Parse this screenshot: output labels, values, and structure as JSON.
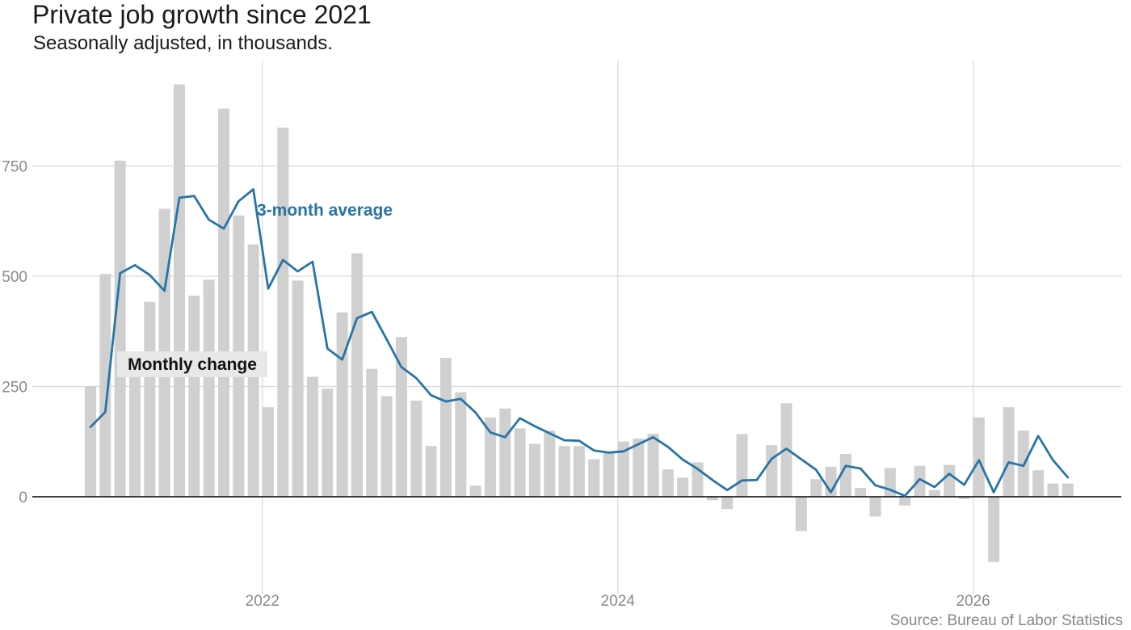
{
  "header": {
    "title": "Private job growth since 2021",
    "subtitle": "Seasonally adjusted, in thousands."
  },
  "footer": {
    "source": "Source: Bureau of Labor Statistics"
  },
  "colors": {
    "bars": "#d0d0d0",
    "line": "#2874a6",
    "gridline": "#d9d9d9",
    "zero_line": "#000000",
    "label_box": "#e8e8e8"
  },
  "chart_data": {
    "type": "bar",
    "title": "Private job growth since 2021",
    "subtitle": "Seasonally adjusted, in thousands.",
    "xlabel": "",
    "ylabel": "",
    "ylim": [
      -170,
      960
    ],
    "yticks": [
      0,
      250,
      500,
      750
    ],
    "ytick_labels": [
      "0",
      "250",
      "500",
      "750"
    ],
    "xticks": [
      "2022",
      "2024",
      "2026"
    ],
    "grid": true,
    "start_month": "2021-01",
    "months": [
      "2021-01",
      "2021-02",
      "2021-03",
      "2021-04",
      "2021-05",
      "2021-06",
      "2021-07",
      "2021-08",
      "2021-09",
      "2021-10",
      "2021-11",
      "2021-12",
      "2022-01",
      "2022-02",
      "2022-03",
      "2022-04",
      "2022-05",
      "2022-06",
      "2022-07",
      "2022-08",
      "2022-09",
      "2022-10",
      "2022-11",
      "2022-12",
      "2023-01",
      "2023-02",
      "2023-03",
      "2023-04",
      "2023-05",
      "2023-06",
      "2023-07",
      "2023-08",
      "2023-09",
      "2023-10",
      "2023-11",
      "2023-12",
      "2024-01",
      "2024-02",
      "2024-03",
      "2024-04",
      "2024-05",
      "2024-06",
      "2024-07",
      "2024-08",
      "2024-09",
      "2024-10",
      "2024-11",
      "2024-12",
      "2025-01",
      "2025-02",
      "2025-03",
      "2025-04",
      "2025-05",
      "2025-06",
      "2025-07",
      "2025-08",
      "2025-09",
      "2025-10",
      "2025-11",
      "2025-12",
      "2026-01",
      "2026-02",
      "2026-03",
      "2026-04",
      "2026-05",
      "2026-06",
      "2026-07"
    ],
    "series": [
      {
        "name": "Monthly change",
        "type": "bar",
        "values": [
          250,
          505,
          762,
          295,
          442,
          653,
          935,
          456,
          492,
          880,
          638,
          572,
          203,
          837,
          490,
          272,
          245,
          418,
          552,
          290,
          228,
          362,
          218,
          115,
          315,
          237,
          25,
          180,
          200,
          155,
          120,
          150,
          115,
          115,
          85,
          100,
          125,
          132,
          143,
          62,
          43,
          78,
          -8,
          -28,
          142,
          0,
          117,
          212,
          -78,
          40,
          68,
          97,
          20,
          -45,
          65,
          -20,
          70,
          15,
          72,
          -5,
          180,
          -148,
          203,
          150,
          60,
          30,
          30
        ]
      },
      {
        "name": "3-month average",
        "type": "line",
        "values": [
          158,
          192,
          507,
          525,
          503,
          467,
          678,
          682,
          628,
          608,
          670,
          697,
          472,
          537,
          511,
          533,
          336,
          311,
          405,
          419,
          357,
          294,
          269,
          230,
          216,
          222,
          191,
          146,
          135,
          178,
          160,
          144,
          128,
          127,
          105,
          100,
          103,
          119,
          135,
          113,
          84,
          63,
          38,
          15,
          37,
          38,
          86,
          109,
          85,
          61,
          10,
          70,
          64,
          26,
          16,
          2,
          40,
          22,
          52,
          27,
          83,
          10,
          78,
          70,
          138,
          83,
          44
        ]
      }
    ],
    "annotations": [
      "3-month average",
      "Monthly change"
    ]
  }
}
